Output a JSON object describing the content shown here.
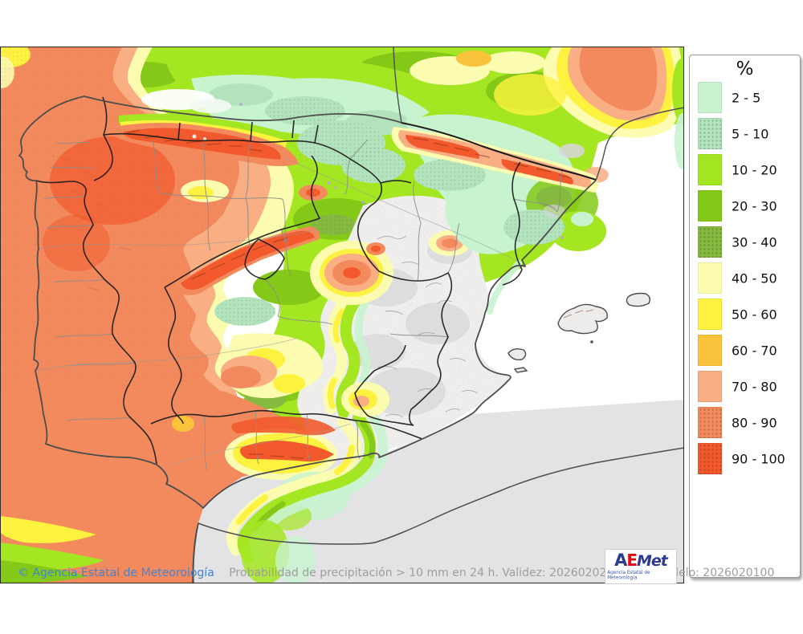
{
  "legend": {
    "title": "%",
    "bins": [
      {
        "label": "2 - 5",
        "color": "#c8f3cf",
        "dotted": false
      },
      {
        "label": "5 - 10",
        "color": "#b2e3bc",
        "dotted": true
      },
      {
        "label": "10 - 20",
        "color": "#a5e622",
        "dotted": false
      },
      {
        "label": "20 - 30",
        "color": "#84c818",
        "dotted": false
      },
      {
        "label": "30 - 40",
        "color": "#86b93f",
        "dotted": true
      },
      {
        "label": "40 - 50",
        "color": "#fbfcb0",
        "dotted": false
      },
      {
        "label": "50 - 60",
        "color": "#fdf23f",
        "dotted": false
      },
      {
        "label": "60 - 70",
        "color": "#fac33c",
        "dotted": false
      },
      {
        "label": "70 - 80",
        "color": "#f9ae84",
        "dotted": false
      },
      {
        "label": "80 - 90",
        "color": "#f28a5e",
        "dotted": true
      },
      {
        "label": "90 - 100",
        "color": "#f25a2d",
        "dotted": true
      }
    ]
  },
  "footer": {
    "copyright": "© Agencia Estatal de Meteorología",
    "description": "Probabilidad de precipitación > 10 mm en 24 h. Validez: 20260202 Pasada modelo: 2026020100"
  },
  "logo": {
    "letter_a": "A",
    "letter_e": "E",
    "word_met": "Met",
    "subtitle": "Agencia Estatal de Meteorología"
  },
  "colors": {
    "sea_gray": "#e3e3e5",
    "terrain_fill": "#f1f0ee",
    "terrain_patch": "#dcdcdc",
    "coastline": "#4d4d4d",
    "admin_border": "#1c1c1c",
    "province_border": "#8c8c8c",
    "caption_blue": "#4484cd",
    "caption_gray": "#9e9e9e",
    "logo_blue": "#2b3990",
    "logo_red": "#e30613",
    "map_frame": "#2a2a2a"
  }
}
